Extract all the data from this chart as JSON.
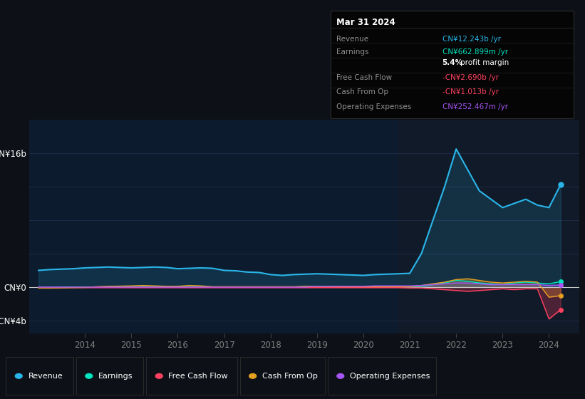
{
  "bg_color": "#0d1117",
  "plot_bg_color": "#0d1b2e",
  "plot_bg_color_right": "#111a28",
  "grid_color": "#243050",
  "text_color": "#808080",
  "zero_line_color": "#c8c8c8",
  "years": [
    2013.0,
    2013.25,
    2013.5,
    2013.75,
    2014.0,
    2014.25,
    2014.5,
    2014.75,
    2015.0,
    2015.25,
    2015.5,
    2015.75,
    2016.0,
    2016.25,
    2016.5,
    2016.75,
    2017.0,
    2017.25,
    2017.5,
    2017.75,
    2018.0,
    2018.25,
    2018.5,
    2018.75,
    2019.0,
    2019.25,
    2019.5,
    2019.75,
    2020.0,
    2020.25,
    2020.5,
    2020.75,
    2021.0,
    2021.25,
    2021.5,
    2021.75,
    2022.0,
    2022.25,
    2022.5,
    2022.75,
    2023.0,
    2023.25,
    2023.5,
    2023.75,
    2024.0,
    2024.25
  ],
  "revenue": [
    2.0,
    2.1,
    2.15,
    2.2,
    2.3,
    2.35,
    2.4,
    2.35,
    2.3,
    2.35,
    2.4,
    2.35,
    2.2,
    2.25,
    2.3,
    2.25,
    2.0,
    1.95,
    1.8,
    1.75,
    1.5,
    1.4,
    1.5,
    1.55,
    1.6,
    1.55,
    1.5,
    1.45,
    1.4,
    1.5,
    1.55,
    1.6,
    1.65,
    4.0,
    8.0,
    12.0,
    16.5,
    14.0,
    11.5,
    10.5,
    9.5,
    10.0,
    10.5,
    9.8,
    9.5,
    12.243
  ],
  "earnings": [
    0.0,
    0.0,
    0.02,
    0.02,
    0.02,
    0.02,
    0.02,
    0.02,
    0.02,
    0.05,
    0.03,
    0.02,
    0.02,
    0.05,
    0.03,
    0.02,
    0.02,
    0.02,
    0.02,
    0.02,
    0.02,
    0.02,
    0.02,
    0.05,
    0.1,
    0.08,
    0.05,
    0.03,
    0.02,
    0.02,
    0.02,
    0.02,
    0.02,
    0.1,
    0.3,
    0.5,
    0.8,
    0.7,
    0.5,
    0.4,
    0.3,
    0.5,
    0.6,
    0.5,
    0.4,
    0.663
  ],
  "free_cash_flow": [
    -0.05,
    -0.05,
    -0.05,
    -0.05,
    -0.05,
    -0.05,
    -0.05,
    -0.05,
    -0.05,
    -0.05,
    -0.05,
    -0.05,
    -0.05,
    -0.05,
    -0.05,
    -0.05,
    -0.05,
    -0.05,
    -0.05,
    -0.05,
    -0.05,
    -0.05,
    -0.05,
    -0.05,
    -0.05,
    -0.05,
    -0.05,
    -0.05,
    -0.05,
    -0.05,
    -0.05,
    -0.05,
    -0.1,
    -0.1,
    -0.2,
    -0.3,
    -0.4,
    -0.5,
    -0.4,
    -0.3,
    -0.2,
    -0.3,
    -0.2,
    -0.2,
    -3.8,
    -2.69
  ],
  "cash_from_op": [
    -0.1,
    -0.1,
    -0.08,
    -0.05,
    -0.03,
    0.05,
    0.1,
    0.12,
    0.15,
    0.2,
    0.15,
    0.1,
    0.1,
    0.2,
    0.15,
    0.05,
    0.05,
    0.05,
    0.05,
    0.05,
    0.05,
    0.05,
    0.05,
    0.1,
    0.1,
    0.08,
    0.05,
    0.05,
    0.05,
    0.05,
    0.05,
    0.05,
    0.05,
    0.2,
    0.4,
    0.6,
    0.9,
    1.0,
    0.8,
    0.6,
    0.5,
    0.6,
    0.7,
    0.6,
    -1.2,
    -1.013
  ],
  "operating_expenses": [
    0.0,
    0.0,
    0.0,
    0.0,
    0.0,
    0.0,
    0.0,
    0.0,
    0.0,
    0.0,
    0.0,
    0.0,
    0.0,
    0.0,
    0.0,
    0.0,
    0.0,
    0.0,
    0.0,
    0.0,
    0.0,
    0.0,
    0.0,
    0.0,
    0.1,
    0.1,
    0.1,
    0.1,
    0.1,
    0.15,
    0.15,
    0.15,
    0.15,
    0.2,
    0.3,
    0.4,
    0.5,
    0.5,
    0.4,
    0.3,
    0.3,
    0.3,
    0.3,
    0.3,
    0.2,
    0.252
  ],
  "revenue_color": "#29b5e8",
  "earnings_color": "#00e5c0",
  "free_cash_flow_color": "#ff4060",
  "cash_from_op_color": "#e5a020",
  "operating_expenses_color": "#a855f7",
  "ylim_min": -5.5,
  "ylim_max": 20.0,
  "yticks": [
    -4,
    0,
    4,
    8,
    12,
    16
  ],
  "xtick_years": [
    2014,
    2015,
    2016,
    2017,
    2018,
    2019,
    2020,
    2021,
    2022,
    2023,
    2024
  ],
  "info_box": {
    "title": "Mar 31 2024",
    "rows": [
      {
        "label": "Revenue",
        "value": "CN¥12.243b /yr",
        "value_color": "#29b5e8"
      },
      {
        "label": "Earnings",
        "value": "CN¥662.899m /yr",
        "value_color": "#00e5c0"
      },
      {
        "label": "",
        "value2a": "5.4%",
        "value2b": " profit margin",
        "value_color": "#ffffff"
      },
      {
        "label": "Free Cash Flow",
        "value": "-CN¥2.690b /yr",
        "value_color": "#ff4060"
      },
      {
        "label": "Cash From Op",
        "value": "-CN¥1.013b /yr",
        "value_color": "#ff4060"
      },
      {
        "label": "Operating Expenses",
        "value": "CN¥252.467m /yr",
        "value_color": "#a855f7"
      }
    ],
    "bg_color": "#050505",
    "border_color": "#2a2a2a",
    "text_color": "#909090",
    "title_color": "#ffffff"
  },
  "legend_items": [
    {
      "label": "Revenue",
      "color": "#29b5e8"
    },
    {
      "label": "Earnings",
      "color": "#00e5c0"
    },
    {
      "label": "Free Cash Flow",
      "color": "#ff4060"
    },
    {
      "label": "Cash From Op",
      "color": "#e5a020"
    },
    {
      "label": "Operating Expenses",
      "color": "#a855f7"
    }
  ],
  "shaded_right_start": 2020.75
}
